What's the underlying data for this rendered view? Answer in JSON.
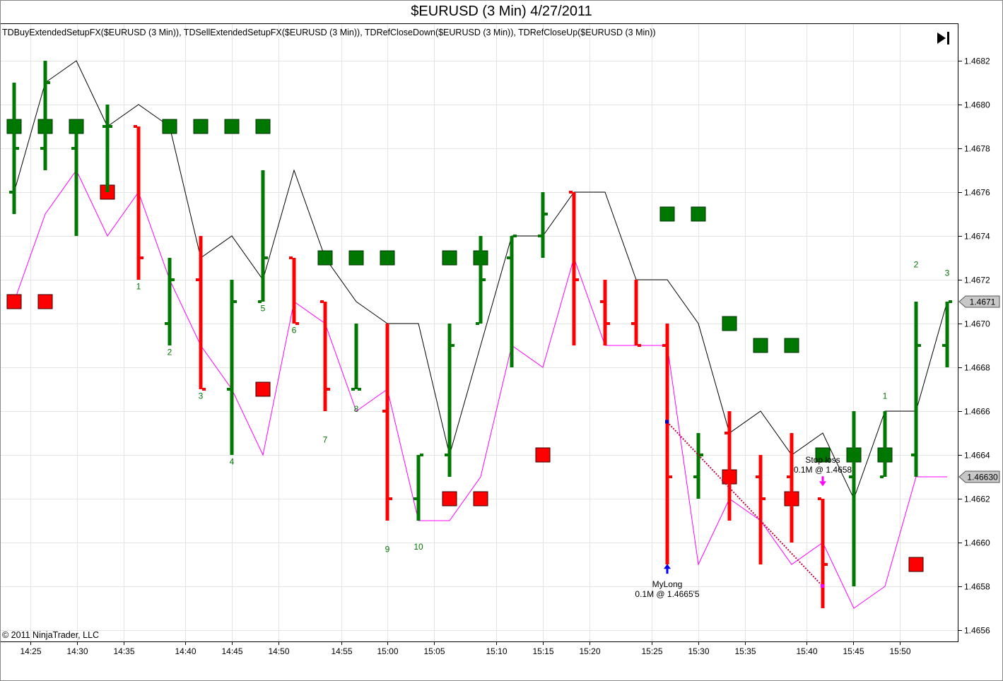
{
  "title": "$EURUSD (3 Min)  4/27/2011",
  "indicator_legend": "TDBuyExtendedSetupFX($EURUSD  (3  Min)),  TDSellExtendedSetupFX($EURUSD  (3  Min)),  TDRefCloseDown($EURUSD  (3  Min)),  TDRefCloseUp($EURUSD  (3  Min))",
  "copyright": "© 2011 NinjaTrader, LLC",
  "toolbar": {
    "scroll_end_icon": "skip-to-end-icon"
  },
  "colors": {
    "up": "#007700",
    "down": "#ff0000",
    "ref_up": "#000000",
    "ref_down": "#ff00ff",
    "trade_line": "#c00040"
  },
  "chart_data": {
    "type": "bar",
    "instrument": "$EURUSD",
    "ylim": [
      1.46555,
      1.46835
    ],
    "yticks": [
      "1.4656",
      "1.4658",
      "1.4660",
      "1.4662",
      "1.4664",
      "1.4666",
      "1.4668",
      "1.4670",
      "1.4672",
      "1.4674",
      "1.4676",
      "1.4678",
      "1.4680",
      "1.4682"
    ],
    "xticks": [
      "14:25",
      "14:30",
      "14:35",
      "14:40",
      "14:45",
      "14:50",
      "14:55",
      "15:00",
      "15:05",
      "15:10",
      "15:15",
      "15:20",
      "15:25",
      "15:30",
      "15:35",
      "15:40",
      "15:45",
      "15:50"
    ],
    "bars": [
      {
        "o": 1.4676,
        "h": 1.4681,
        "l": 1.4675,
        "c": 1.4678
      },
      {
        "o": 1.4678,
        "h": 1.4682,
        "l": 1.4677,
        "c": 1.4681
      },
      {
        "o": 1.4678,
        "h": 1.4679,
        "l": 1.4674,
        "c": 1.4679
      },
      {
        "o": 1.4679,
        "h": 1.468,
        "l": 1.4676,
        "c": 1.4679
      },
      {
        "o": 1.4679,
        "h": 1.4679,
        "l": 1.4672,
        "c": 1.4673
      },
      {
        "o": 1.467,
        "h": 1.4673,
        "l": 1.4669,
        "c": 1.4672
      },
      {
        "o": 1.4672,
        "h": 1.4674,
        "l": 1.4667,
        "c": 1.4667
      },
      {
        "o": 1.4667,
        "h": 1.4672,
        "l": 1.4664,
        "c": 1.4671
      },
      {
        "o": 1.4671,
        "h": 1.4677,
        "l": 1.4671,
        "c": 1.4673
      },
      {
        "o": 1.4673,
        "h": 1.4673,
        "l": 1.467,
        "c": 1.467
      },
      {
        "o": 1.4671,
        "h": 1.4671,
        "l": 1.4666,
        "c": 1.4667
      },
      {
        "o": 1.4667,
        "h": 1.467,
        "l": 1.4667,
        "c": 1.4667
      },
      {
        "o": 1.4666,
        "h": 1.467,
        "l": 1.4661,
        "c": 1.4662
      },
      {
        "o": 1.4662,
        "h": 1.4664,
        "l": 1.4661,
        "c": 1.4664
      },
      {
        "o": 1.4664,
        "h": 1.467,
        "l": 1.4663,
        "c": 1.4669
      },
      {
        "o": 1.467,
        "h": 1.4674,
        "l": 1.467,
        "c": 1.4672
      },
      {
        "o": 1.4673,
        "h": 1.4674,
        "l": 1.4668,
        "c": 1.4674
      },
      {
        "o": 1.4674,
        "h": 1.4676,
        "l": 1.4673,
        "c": 1.4675
      },
      {
        "o": 1.4676,
        "h": 1.4676,
        "l": 1.4669,
        "c": 1.4672
      },
      {
        "o": 1.4671,
        "h": 1.4672,
        "l": 1.4669,
        "c": 1.467
      },
      {
        "o": 1.467,
        "h": 1.4672,
        "l": 1.4669,
        "c": 1.4669
      },
      {
        "o": 1.4669,
        "h": 1.467,
        "l": 1.4659,
        "c": 1.4663
      },
      {
        "o": 1.4663,
        "h": 1.4665,
        "l": 1.4662,
        "c": 1.4664
      },
      {
        "o": 1.4665,
        "h": 1.4666,
        "l": 1.4661,
        "c": 1.4663
      },
      {
        "o": 1.4663,
        "h": 1.4664,
        "l": 1.4659,
        "c": 1.4662
      },
      {
        "o": 1.4663,
        "h": 1.4665,
        "l": 1.466,
        "c": 1.4662
      },
      {
        "o": 1.4662,
        "h": 1.4662,
        "l": 1.4657,
        "c": 1.4659
      },
      {
        "o": 1.4663,
        "h": 1.4666,
        "l": 1.4658,
        "c": 1.4664
      },
      {
        "o": 1.4663,
        "h": 1.4666,
        "l": 1.4663,
        "c": 1.4664
      },
      {
        "o": 1.4664,
        "h": 1.4671,
        "l": 1.4663,
        "c": 1.4669
      },
      {
        "o": 1.4669,
        "h": 1.4671,
        "l": 1.4668,
        "c": 1.4671
      }
    ],
    "bar_x": [
      20,
      64,
      108,
      152,
      196,
      240,
      284,
      328,
      372,
      416,
      460,
      504,
      548,
      592,
      636,
      680,
      724,
      768,
      812,
      856,
      900,
      944,
      988,
      1032,
      1076,
      1120,
      1164,
      1208,
      1252,
      1296,
      1340
    ],
    "ref_close_up": [
      1.4676,
      1.4681,
      1.4682,
      1.4679,
      1.468,
      1.4679,
      1.4673,
      1.4674,
      1.4672,
      1.4677,
      1.4673,
      1.4671,
      1.467,
      1.467,
      1.4664,
      1.4669,
      1.4674,
      1.4674,
      1.4676,
      1.4676,
      1.4672,
      1.4672,
      1.467,
      1.4665,
      1.4666,
      1.4664,
      1.4665,
      1.4662,
      1.4666,
      1.4666,
      1.4671
    ],
    "ref_close_down": [
      1.4671,
      1.4675,
      1.4677,
      1.4674,
      1.4676,
      1.4672,
      1.4669,
      1.4667,
      1.4664,
      1.4671,
      1.467,
      1.4666,
      1.4667,
      1.4661,
      1.4661,
      1.4663,
      1.4669,
      1.4668,
      1.4673,
      1.4669,
      1.4669,
      1.4669,
      1.4659,
      1.4662,
      1.4661,
      1.4659,
      1.466,
      1.4657,
      1.4658,
      1.4663,
      1.4663
    ],
    "buy_markers": [
      {
        "i": 0,
        "y": 1.4679
      },
      {
        "i": 1,
        "y": 1.4679
      },
      {
        "i": 2,
        "y": 1.4679
      },
      {
        "i": 5,
        "y": 1.4679
      },
      {
        "i": 6,
        "y": 1.4679
      },
      {
        "i": 7,
        "y": 1.4679
      },
      {
        "i": 8,
        "y": 1.4679
      },
      {
        "i": 10,
        "y": 1.4673
      },
      {
        "i": 11,
        "y": 1.4673
      },
      {
        "i": 12,
        "y": 1.4673
      },
      {
        "i": 14,
        "y": 1.4673
      },
      {
        "i": 15,
        "y": 1.4673
      },
      {
        "i": 21,
        "y": 1.4675
      },
      {
        "i": 22,
        "y": 1.4675
      },
      {
        "i": 23,
        "y": 1.467
      },
      {
        "i": 24,
        "y": 1.4669
      },
      {
        "i": 25,
        "y": 1.4669
      },
      {
        "i": 26,
        "y": 1.4664
      },
      {
        "i": 27,
        "y": 1.4664
      },
      {
        "i": 28,
        "y": 1.4664
      }
    ],
    "sell_markers": [
      {
        "i": 0,
        "y": 1.4671
      },
      {
        "i": 1,
        "y": 1.4671
      },
      {
        "i": 3,
        "y": 1.4676
      },
      {
        "i": 8,
        "y": 1.4667
      },
      {
        "i": 14,
        "y": 1.4662
      },
      {
        "i": 15,
        "y": 1.4662
      },
      {
        "i": 17,
        "y": 1.4664
      },
      {
        "i": 23,
        "y": 1.4663
      },
      {
        "i": 25,
        "y": 1.4662
      },
      {
        "i": 29,
        "y": 1.4659
      }
    ],
    "setup_counts": [
      {
        "i": 4,
        "label": "1",
        "y": 1.46717
      },
      {
        "i": 5,
        "label": "2",
        "y": 1.46687
      },
      {
        "i": 6,
        "label": "3",
        "y": 1.46667
      },
      {
        "i": 7,
        "label": "4",
        "y": 1.46637
      },
      {
        "i": 8,
        "label": "5",
        "y": 1.46707
      },
      {
        "i": 9,
        "label": "6",
        "y": 1.46697
      },
      {
        "i": 10,
        "label": "7",
        "y": 1.46647
      },
      {
        "i": 11,
        "label": "8",
        "y": 1.46661
      },
      {
        "i": 12,
        "label": "9",
        "y": 1.46597
      },
      {
        "i": 13,
        "label": "10",
        "y": 1.46598
      },
      {
        "i": 28,
        "label": "1",
        "y": 1.46667
      },
      {
        "i": 29,
        "label": "2",
        "y": 1.46727
      },
      {
        "i": 30,
        "label": "3",
        "y": 1.46723
      }
    ],
    "price_markers": [
      {
        "label": "1.4671",
        "y": 1.4671
      },
      {
        "label": "1.46630",
        "y": 1.4663
      }
    ],
    "trades": [
      {
        "name": "MyLong",
        "detail": "0.1M @ 1.4665'5",
        "i": 21,
        "price": 1.46655,
        "arrow": "up",
        "arrow_y": 1.46588
      },
      {
        "name": "Stop loss",
        "detail": "0.1M @ 1.4658",
        "i": 26,
        "price": 1.4658,
        "arrow": "down",
        "arrow_y": 1.46628
      }
    ]
  }
}
